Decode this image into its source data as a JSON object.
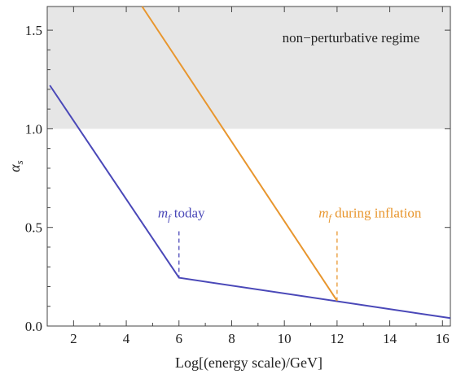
{
  "chart_data": {
    "type": "line",
    "xlabel": "Log[(energy scale)/GeV]",
    "ylabel_base": "α",
    "ylabel_sub": "s",
    "xlim": [
      1,
      16.3
    ],
    "ylim": [
      0,
      1.62
    ],
    "xticks": [
      2,
      4,
      6,
      8,
      10,
      12,
      14,
      16
    ],
    "xtick_labels": [
      "2",
      "4",
      "6",
      "8",
      "10",
      "12",
      "14",
      "16"
    ],
    "yticks": [
      0.0,
      0.5,
      1.0,
      1.5
    ],
    "ytick_labels": [
      "0.0",
      "0.5",
      "1.0",
      "1.5"
    ],
    "grid": false,
    "shaded_region": {
      "y_from": 1.0,
      "y_to": 1.62,
      "color": "#e6e6e6",
      "label": "non−perturbative regime"
    },
    "series": [
      {
        "color": "#4a48b8",
        "x": [
          1.1,
          6.0,
          16.3
        ],
        "y": [
          1.22,
          0.245,
          0.04
        ]
      },
      {
        "color": "#e8962e",
        "x": [
          4.6,
          12.0
        ],
        "y": [
          1.62,
          0.128
        ]
      }
    ],
    "annotations": [
      {
        "text_italic": "m",
        "sub": "f",
        "text_rest": " today",
        "color": "#4a48b8",
        "marker_x": 6.0,
        "marker_y_top": 0.48,
        "marker_y_bottom": 0.245,
        "label_x": 5.2,
        "label_y": 0.55
      },
      {
        "text_italic": "m",
        "sub": "f",
        "text_rest": " during inflation",
        "color": "#e8962e",
        "marker_x": 12.0,
        "marker_y_top": 0.48,
        "marker_y_bottom": 0.128,
        "label_x": 11.3,
        "label_y": 0.55
      }
    ]
  }
}
